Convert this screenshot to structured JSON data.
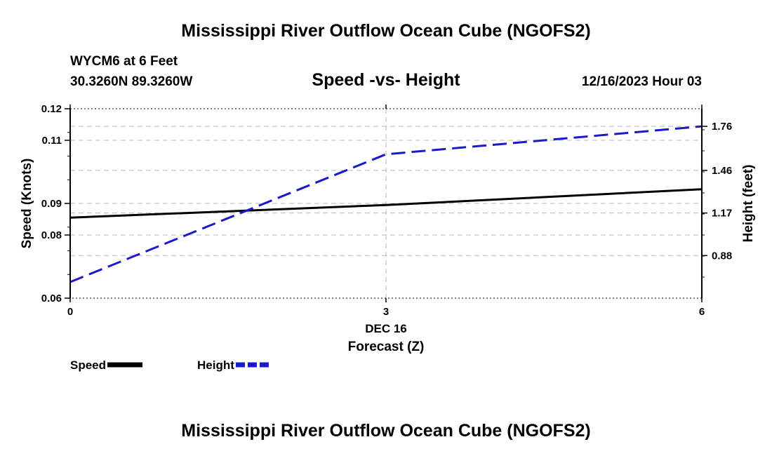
{
  "header": {
    "title": "Mississippi River Outflow Ocean Cube (NGOFS2)",
    "station": "WYCM6 at 6 Feet",
    "coordinates": "30.3260N  89.3260W",
    "subtitle": "Speed -vs- Height",
    "datetime": "12/16/2023 Hour 03"
  },
  "footer": {
    "title": "Mississippi River Outflow Ocean Cube (NGOFS2)"
  },
  "chart_data": {
    "type": "line",
    "title": "Speed -vs- Height",
    "xlabel": "Forecast (Z)",
    "x_date_label": "DEC 16",
    "x": [
      0,
      3,
      6
    ],
    "xlim": [
      0,
      6
    ],
    "x_ticks": [
      "0",
      "3",
      "6"
    ],
    "ylabel_left": "Speed (Knots)",
    "ylim_left": [
      0.06,
      0.12
    ],
    "y_ticks_left": [
      "0.06",
      "0.08",
      "0.09",
      "0.11",
      "0.12"
    ],
    "ylabel_right": "Height (feet)",
    "ylim_right": [
      0.59,
      1.88
    ],
    "y_ticks_right": [
      "0.88",
      "1.17",
      "1.46",
      "1.76"
    ],
    "grid": true,
    "legend_position": "bottom-left",
    "series": [
      {
        "name": "Speed",
        "axis": "left",
        "color": "#000000",
        "style": "solid",
        "values": [
          0.0855,
          0.0895,
          0.0945
        ]
      },
      {
        "name": "Height",
        "axis": "right",
        "color": "#1a1acc",
        "style": "dashed",
        "values": [
          0.7,
          1.57,
          1.76
        ]
      }
    ]
  }
}
